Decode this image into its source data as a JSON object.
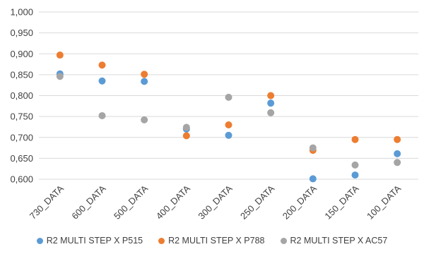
{
  "chart_data": {
    "type": "scatter",
    "categories": [
      "730_DATA",
      "600_DATA",
      "500_DATA",
      "400_DATA",
      "300_DATA",
      "250_DATA",
      "200_DATA",
      "150_DATA",
      "100_DATA"
    ],
    "y_ticks": [
      "0,600",
      "0,650",
      "0,700",
      "0,750",
      "0,800",
      "0,850",
      "0,900",
      "0,950",
      "1,000"
    ],
    "ylim": [
      0.6,
      1.0
    ],
    "grid": true,
    "legend_position": "bottom",
    "series": [
      {
        "name": "R2 MULTI STEP X  P515",
        "color": "#5b9bd5",
        "values": [
          0.852,
          0.835,
          0.834,
          0.72,
          0.705,
          0.782,
          0.601,
          0.61,
          0.661
        ]
      },
      {
        "name": "R2 MULTI STEP X  P788",
        "color": "#ed7d31",
        "values": [
          0.897,
          0.873,
          0.851,
          0.704,
          0.73,
          0.8,
          0.669,
          0.695,
          0.695
        ]
      },
      {
        "name": "R2 MULTI STEP X  AC57",
        "color": "#a5a5a5",
        "values": [
          0.846,
          0.752,
          0.742,
          0.724,
          0.796,
          0.759,
          0.675,
          0.634,
          0.64
        ]
      }
    ]
  }
}
